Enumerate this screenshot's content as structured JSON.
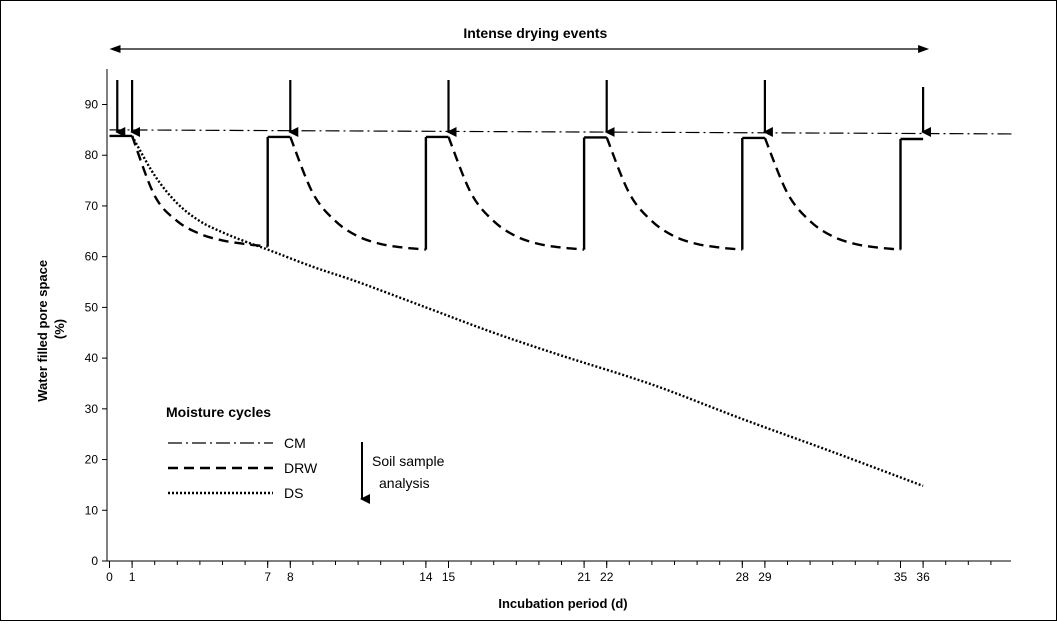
{
  "chart_data": {
    "type": "line",
    "title": "",
    "xlabel": "Incubation period (d)",
    "ylabel": "Water filled pore space (%)",
    "xlim": [
      0,
      40
    ],
    "ylim": [
      0,
      100
    ],
    "x_ticks": [
      0,
      1,
      7,
      8,
      14,
      15,
      21,
      22,
      28,
      29,
      35,
      36
    ],
    "x_tick_labels": [
      "0",
      "1",
      "7",
      "8",
      "14",
      "15",
      "21",
      "22",
      "28",
      "29",
      "35",
      "36"
    ],
    "y_ticks": [
      0,
      10,
      20,
      30,
      40,
      50,
      60,
      70,
      80,
      90
    ],
    "y_tick_labels": [
      "0",
      "10",
      "20",
      "30",
      "40",
      "50",
      "60",
      "70",
      "80",
      "90"
    ],
    "banner": {
      "label": "Intense drying events",
      "from": 0,
      "to": 36
    },
    "sample_arrow_days": [
      0.3,
      1,
      8,
      15,
      22,
      29,
      36
    ],
    "series": [
      {
        "name": "CM",
        "style": "dashdot",
        "x": [
          0,
          40
        ],
        "y": [
          85,
          84.2
        ]
      },
      {
        "name": "DRW",
        "style": "dashed",
        "x": [
          0,
          1,
          2,
          3,
          4,
          5,
          6,
          7,
          7,
          8,
          9,
          10,
          11,
          12,
          13,
          14,
          14,
          15,
          16,
          17,
          18,
          19,
          20,
          21,
          21,
          22,
          23,
          24,
          25,
          26,
          27,
          28,
          28,
          29,
          30,
          31,
          32,
          33,
          34,
          35,
          35,
          36
        ],
        "y": [
          83.8,
          83.8,
          72,
          67,
          64.5,
          63.2,
          62.5,
          62,
          83.6,
          83.6,
          72.5,
          67,
          64,
          62.5,
          61.8,
          61.4,
          83.6,
          83.6,
          72.5,
          67,
          64,
          62.5,
          61.8,
          61.4,
          83.5,
          83.5,
          72.5,
          67,
          64,
          62.5,
          61.8,
          61.4,
          83.4,
          83.4,
          72.5,
          67,
          64,
          62.5,
          61.8,
          61.4,
          83.2,
          83.2
        ]
      },
      {
        "name": "DS",
        "style": "dotted",
        "x": [
          1,
          2,
          3,
          4,
          5,
          6,
          7,
          9,
          11,
          14,
          17,
          20,
          24,
          28,
          32,
          36
        ],
        "y": [
          83.8,
          76,
          70.5,
          67,
          64.8,
          63,
          61.4,
          58,
          55,
          50,
          45,
          40.5,
          34.8,
          28,
          21.5,
          14.8
        ]
      }
    ],
    "legend": {
      "title": "Moisture cycles",
      "placement": "bottom-left",
      "entries": [
        {
          "label": "CM",
          "style": "dashdot"
        },
        {
          "label": "DRW",
          "style": "dashed"
        },
        {
          "label": "DS",
          "style": "dotted"
        }
      ]
    },
    "annotation": {
      "lines": [
        "Soil sample",
        "analysis"
      ]
    }
  }
}
